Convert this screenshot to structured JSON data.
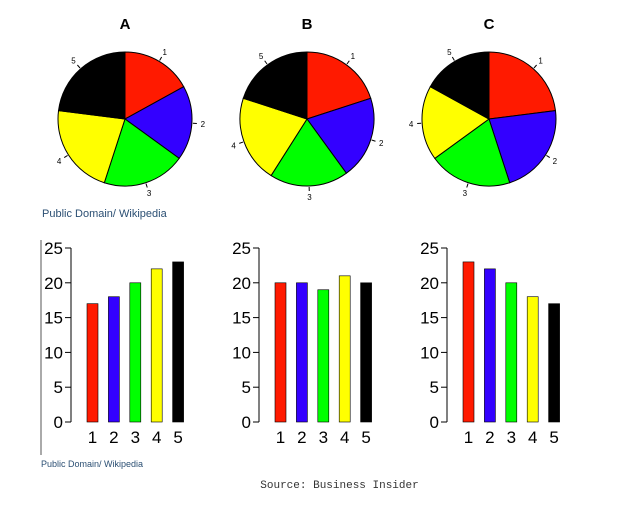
{
  "colors": [
    "#ff1a00",
    "#3300ff",
    "#00ff00",
    "#ffff00",
    "#000000"
  ],
  "credits": {
    "top": "Public Domain/ Wikipedia",
    "bottom": "Public Domain/ Wikipedia",
    "source": "Source: Business Insider"
  },
  "chart_data": [
    {
      "type": "pie",
      "title": "A",
      "categories": [
        "1",
        "2",
        "3",
        "4",
        "5"
      ],
      "values": [
        17,
        18,
        20,
        22,
        23
      ]
    },
    {
      "type": "pie",
      "title": "B",
      "categories": [
        "1",
        "2",
        "3",
        "4",
        "5"
      ],
      "values": [
        20,
        20,
        19,
        21,
        20
      ]
    },
    {
      "type": "pie",
      "title": "C",
      "categories": [
        "1",
        "2",
        "3",
        "4",
        "5"
      ],
      "values": [
        23,
        22,
        20,
        18,
        17
      ]
    },
    {
      "type": "bar",
      "title": "",
      "categories": [
        "1",
        "2",
        "3",
        "4",
        "5"
      ],
      "values": [
        17,
        18,
        20,
        22,
        23
      ],
      "ylim": [
        0,
        25
      ],
      "yticks": [
        "0",
        "5",
        "10",
        "15",
        "20",
        "25"
      ]
    },
    {
      "type": "bar",
      "title": "",
      "categories": [
        "1",
        "2",
        "3",
        "4",
        "5"
      ],
      "values": [
        20,
        20,
        19,
        21,
        20
      ],
      "ylim": [
        0,
        25
      ],
      "yticks": [
        "0",
        "5",
        "10",
        "15",
        "20",
        "25"
      ]
    },
    {
      "type": "bar",
      "title": "",
      "categories": [
        "1",
        "2",
        "3",
        "4",
        "5"
      ],
      "values": [
        23,
        22,
        20,
        18,
        17
      ],
      "ylim": [
        0,
        25
      ],
      "yticks": [
        "0",
        "5",
        "10",
        "15",
        "20",
        "25"
      ]
    }
  ]
}
